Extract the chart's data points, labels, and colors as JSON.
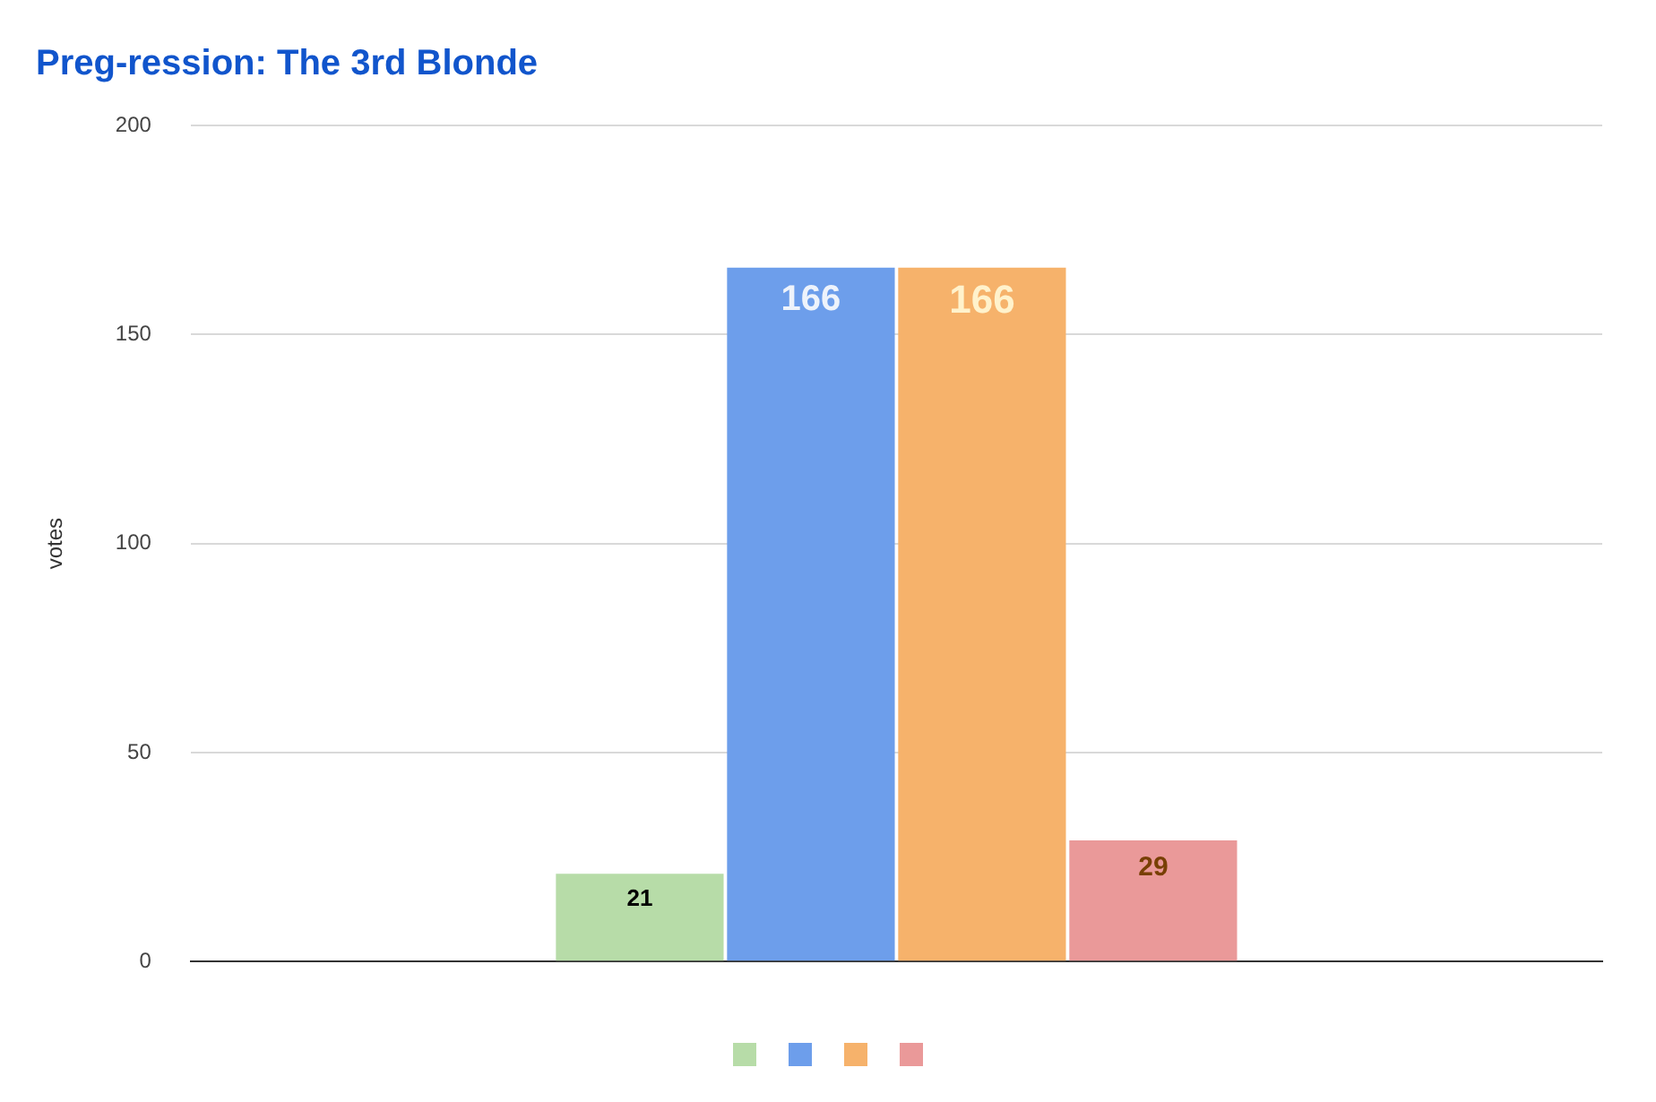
{
  "chart_data": {
    "type": "bar",
    "title": "Preg-ression: The 3rd Blonde",
    "ylabel": "votes",
    "categories": [
      null
    ],
    "series": [
      {
        "color": "#b7dca8",
        "values": [
          21
        ]
      },
      {
        "color": "#6d9eeb",
        "values": [
          166
        ]
      },
      {
        "color": "#f6b26b",
        "values": [
          166
        ]
      },
      {
        "color": "#ea9999",
        "values": [
          29
        ]
      }
    ],
    "ylim": [
      0,
      200
    ],
    "yticks": [
      0,
      50,
      100,
      150,
      200
    ],
    "grid": "y",
    "data_labels": true
  }
}
